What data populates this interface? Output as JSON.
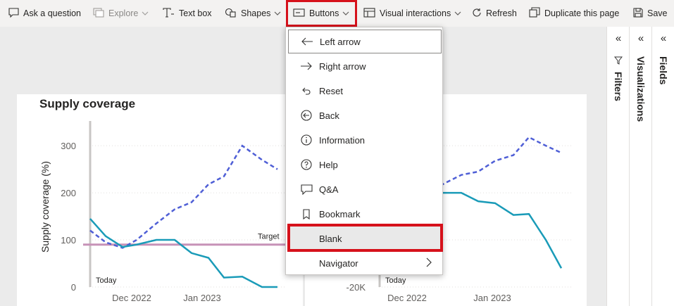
{
  "toolbar": {
    "items": [
      {
        "label": "Ask a question",
        "icon": "chat-question-icon",
        "disabled": false
      },
      {
        "label": "Explore",
        "icon": "explore-icon",
        "disabled": true,
        "chevron": true
      },
      {
        "label": "Text box",
        "icon": "text-box-icon",
        "disabled": false
      },
      {
        "label": "Shapes",
        "icon": "shapes-icon",
        "disabled": false,
        "chevron": true
      },
      {
        "label": "Buttons",
        "icon": "buttons-icon",
        "disabled": false,
        "chevron": true
      },
      {
        "label": "Visual interactions",
        "icon": "visual-interactions-icon",
        "disabled": false,
        "chevron": true
      },
      {
        "label": "Refresh",
        "icon": "refresh-icon",
        "disabled": false
      },
      {
        "label": "Duplicate this page",
        "icon": "duplicate-page-icon",
        "disabled": false
      },
      {
        "label": "Save",
        "icon": "save-icon",
        "disabled": false
      }
    ]
  },
  "buttons_menu": {
    "items": [
      {
        "label": "Left arrow",
        "icon": "left-arrow-icon"
      },
      {
        "label": "Right arrow",
        "icon": "right-arrow-icon"
      },
      {
        "label": "Reset",
        "icon": "reset-icon"
      },
      {
        "label": "Back",
        "icon": "back-icon"
      },
      {
        "label": "Information",
        "icon": "information-icon"
      },
      {
        "label": "Help",
        "icon": "help-icon"
      },
      {
        "label": "Q&A",
        "icon": "qna-icon"
      },
      {
        "label": "Bookmark",
        "icon": "bookmark-icon"
      },
      {
        "label": "Blank",
        "icon": ""
      },
      {
        "label": "Navigator",
        "icon": "",
        "submenu": true
      }
    ]
  },
  "panes": {
    "filters": "Filters",
    "visualizations": "Visualizations",
    "fields": "Fields"
  },
  "colors": {
    "highlight_red": "#d6111b",
    "forecast_dashed": "#4f5fd6",
    "actual_teal": "#1a9bb8",
    "target_pink": "#c792b7"
  },
  "chart_data": [
    {
      "type": "line",
      "title": "Supply coverage",
      "ylabel": "Supply coverage (%)",
      "ytick_labels": [
        "0",
        "100",
        "200",
        "300"
      ],
      "xtick_labels": [
        "Dec 2022",
        "Jan 2023"
      ],
      "ylim": [
        0,
        320
      ],
      "annotations": {
        "target": "Target",
        "today": "Today"
      },
      "target_value": 90,
      "series": [
        {
          "style": "dashed",
          "values": [
            120,
            95,
            83,
            100,
            135,
            165,
            180,
            218,
            235,
            300,
            270,
            250
          ]
        },
        {
          "style": "solid",
          "values": [
            145,
            108,
            85,
            90,
            100,
            100,
            72,
            62,
            20,
            22,
            0,
            0
          ]
        }
      ]
    },
    {
      "type": "line",
      "title": "",
      "ylabel": "",
      "ytick_labels": [
        "-20K"
      ],
      "xtick_labels": [
        "Dec 2022",
        "Jan 2023"
      ],
      "annotations": {
        "today": "Today"
      },
      "series": [
        {
          "style": "dashed",
          "values": [
            null,
            200,
            220,
            238,
            245,
            268,
            280,
            318,
            300,
            285
          ]
        },
        {
          "style": "solid",
          "values": [
            null,
            200,
            200,
            200,
            182,
            178,
            153,
            155,
            100,
            40
          ]
        }
      ]
    }
  ]
}
